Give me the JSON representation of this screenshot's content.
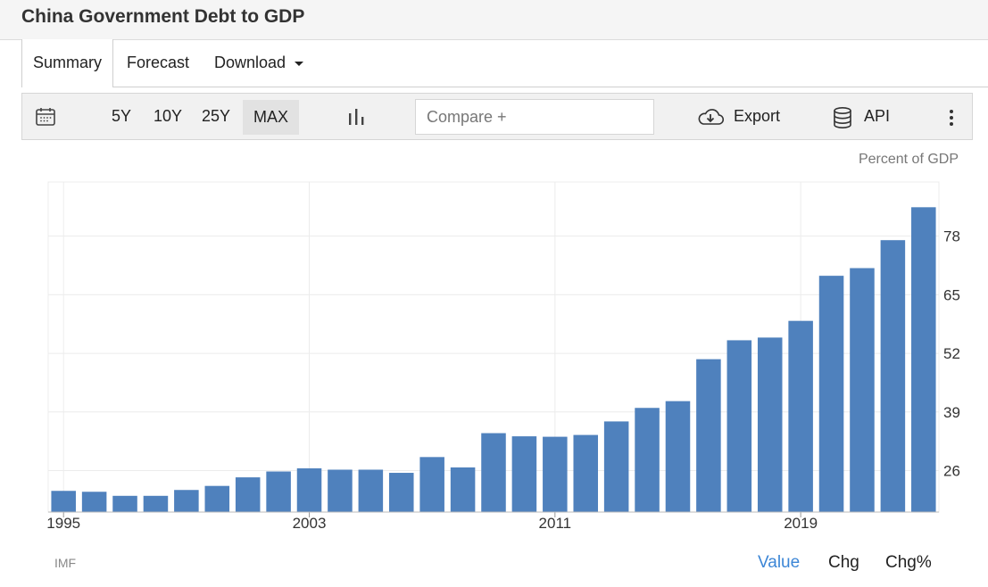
{
  "page": {
    "title": "China Government Debt to GDP"
  },
  "tabs": [
    {
      "label": "Summary",
      "active": true
    },
    {
      "label": "Forecast"
    },
    {
      "label": "Download"
    }
  ],
  "toolbar": {
    "ranges": [
      "5Y",
      "10Y",
      "25Y",
      "MAX"
    ],
    "active_range": "MAX",
    "compare_placeholder": "Compare +",
    "export_label": "Export",
    "api_label": "API"
  },
  "chart": {
    "unit_label": "Percent of GDP",
    "source": "IMF",
    "modes": [
      {
        "label": "Value",
        "active": true
      },
      {
        "label": "Chg"
      },
      {
        "label": "Chg%"
      }
    ]
  },
  "colors": {
    "bar": "#4f81bd",
    "active_mode": "#3c86d6"
  },
  "chart_data": {
    "type": "bar",
    "title": "",
    "xlabel": "",
    "ylabel": "",
    "x": [
      1995,
      1996,
      1997,
      1998,
      1999,
      2000,
      2001,
      2002,
      2003,
      2004,
      2005,
      2006,
      2007,
      2008,
      2009,
      2010,
      2011,
      2012,
      2013,
      2014,
      2015,
      2016,
      2017,
      2018,
      2019,
      2020,
      2021,
      2022,
      2023
    ],
    "values": [
      21.5,
      21.3,
      20.4,
      20.4,
      21.7,
      22.6,
      24.5,
      25.8,
      26.5,
      26.2,
      26.2,
      25.5,
      29,
      26.7,
      34.3,
      33.6,
      33.5,
      33.9,
      36.9,
      39.9,
      41.4,
      50.7,
      54.9,
      55.5,
      59.2,
      69.2,
      70.9,
      77.1,
      84.4
    ],
    "x_tick_labels": [
      "1995",
      "2003",
      "2011",
      "2019"
    ],
    "y_ticks": [
      26,
      39,
      52,
      65,
      78
    ],
    "ylim": [
      16.8,
      90
    ],
    "grid": true,
    "y_axis_side": "right"
  }
}
